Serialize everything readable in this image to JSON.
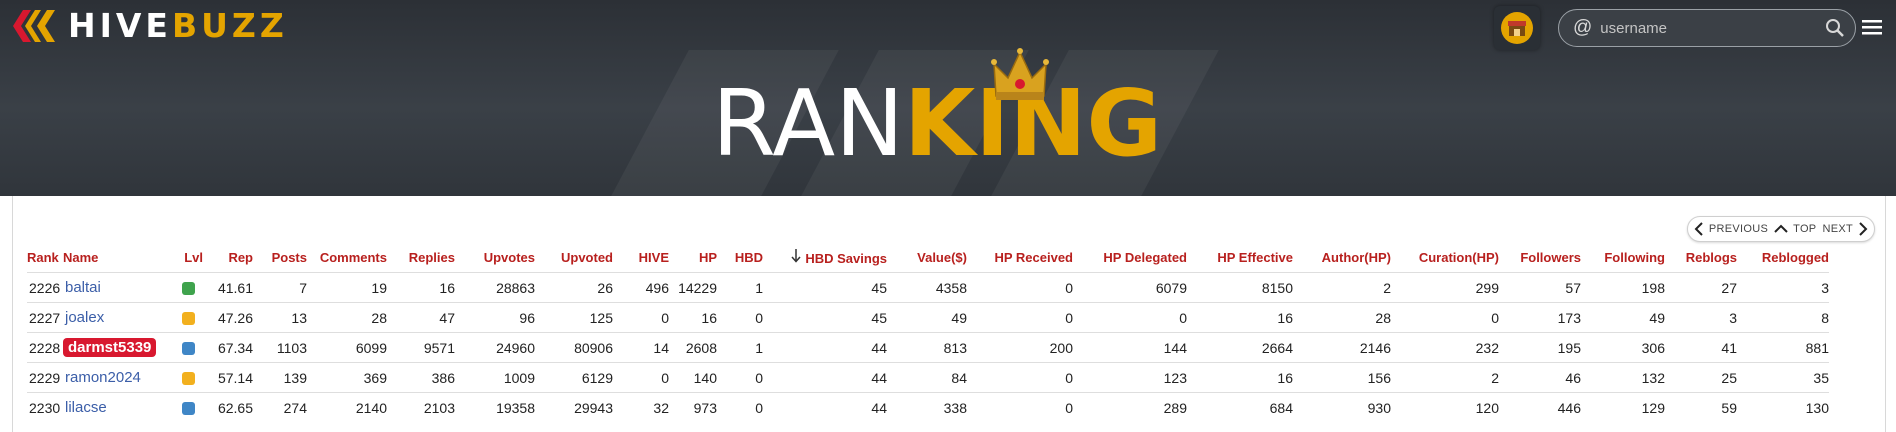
{
  "brand": {
    "hive": "HIVE",
    "buzz": "BUZZ"
  },
  "search": {
    "placeholder": "username",
    "at_symbol": "@"
  },
  "title": {
    "part1": "RAN",
    "part2": "KING"
  },
  "pager": {
    "previous": "PREVIOUS",
    "top": "TOP",
    "next": "NEXT"
  },
  "columns": [
    "Rank",
    "Name",
    "Lvl",
    "Rep",
    "Posts",
    "Comments",
    "Replies",
    "Upvotes",
    "Upvoted",
    "HIVE",
    "HP",
    "HBD",
    "HBD Savings",
    "Value($)",
    "HP Received",
    "HP Delegated",
    "HP Effective",
    "Author(HP)",
    "Curation(HP)",
    "Followers",
    "Following",
    "Reblogs",
    "Reblogged"
  ],
  "rows": [
    {
      "rank": "2226",
      "name": "baltai",
      "lvl_color": "#3fa34d",
      "rep": "41.61",
      "posts": "7",
      "comments": "19",
      "replies": "16",
      "upvotes": "28863",
      "upvoted": "26",
      "hive": "496",
      "hp": "14229",
      "hbd": "1",
      "hbd_savings": "45",
      "value": "4358",
      "hp_received": "0",
      "hp_delegated": "6079",
      "hp_effective": "8150",
      "author_hp": "2",
      "curation_hp": "299",
      "followers": "57",
      "following": "198",
      "reblogs": "27",
      "reblogged": "3",
      "highlight": false
    },
    {
      "rank": "2227",
      "name": "joalex",
      "lvl_color": "#f2b01e",
      "rep": "47.26",
      "posts": "13",
      "comments": "28",
      "replies": "47",
      "upvotes": "96",
      "upvoted": "125",
      "hive": "0",
      "hp": "16",
      "hbd": "0",
      "hbd_savings": "45",
      "value": "49",
      "hp_received": "0",
      "hp_delegated": "0",
      "hp_effective": "16",
      "author_hp": "28",
      "curation_hp": "0",
      "followers": "173",
      "following": "49",
      "reblogs": "3",
      "reblogged": "8",
      "highlight": false
    },
    {
      "rank": "2228",
      "name": "darmst5339",
      "lvl_color": "#3f86c6",
      "rep": "67.34",
      "posts": "1103",
      "comments": "6099",
      "replies": "9571",
      "upvotes": "24960",
      "upvoted": "80906",
      "hive": "14",
      "hp": "2608",
      "hbd": "1",
      "hbd_savings": "44",
      "value": "813",
      "hp_received": "200",
      "hp_delegated": "144",
      "hp_effective": "2664",
      "author_hp": "2146",
      "curation_hp": "232",
      "followers": "195",
      "following": "306",
      "reblogs": "41",
      "reblogged": "881",
      "highlight": true
    },
    {
      "rank": "2229",
      "name": "ramon2024",
      "lvl_color": "#f2b01e",
      "rep": "57.14",
      "posts": "139",
      "comments": "369",
      "replies": "386",
      "upvotes": "1009",
      "upvoted": "6129",
      "hive": "0",
      "hp": "140",
      "hbd": "0",
      "hbd_savings": "44",
      "value": "84",
      "hp_received": "0",
      "hp_delegated": "123",
      "hp_effective": "16",
      "author_hp": "156",
      "curation_hp": "2",
      "followers": "46",
      "following": "132",
      "reblogs": "25",
      "reblogged": "35",
      "highlight": false
    },
    {
      "rank": "2230",
      "name": "lilacse",
      "lvl_color": "#3f86c6",
      "rep": "62.65",
      "posts": "274",
      "comments": "2140",
      "replies": "2103",
      "upvotes": "19358",
      "upvoted": "29943",
      "hive": "32",
      "hp": "973",
      "hbd": "0",
      "hbd_savings": "44",
      "value": "338",
      "hp_received": "0",
      "hp_delegated": "289",
      "hp_effective": "684",
      "author_hp": "930",
      "curation_hp": "120",
      "followers": "446",
      "following": "129",
      "reblogs": "59",
      "reblogged": "130",
      "highlight": false
    }
  ],
  "colors": {
    "accent": "#e4a400",
    "header_text": "#b8201e",
    "link": "#3b5ea8",
    "highlight": "#d8182f"
  }
}
